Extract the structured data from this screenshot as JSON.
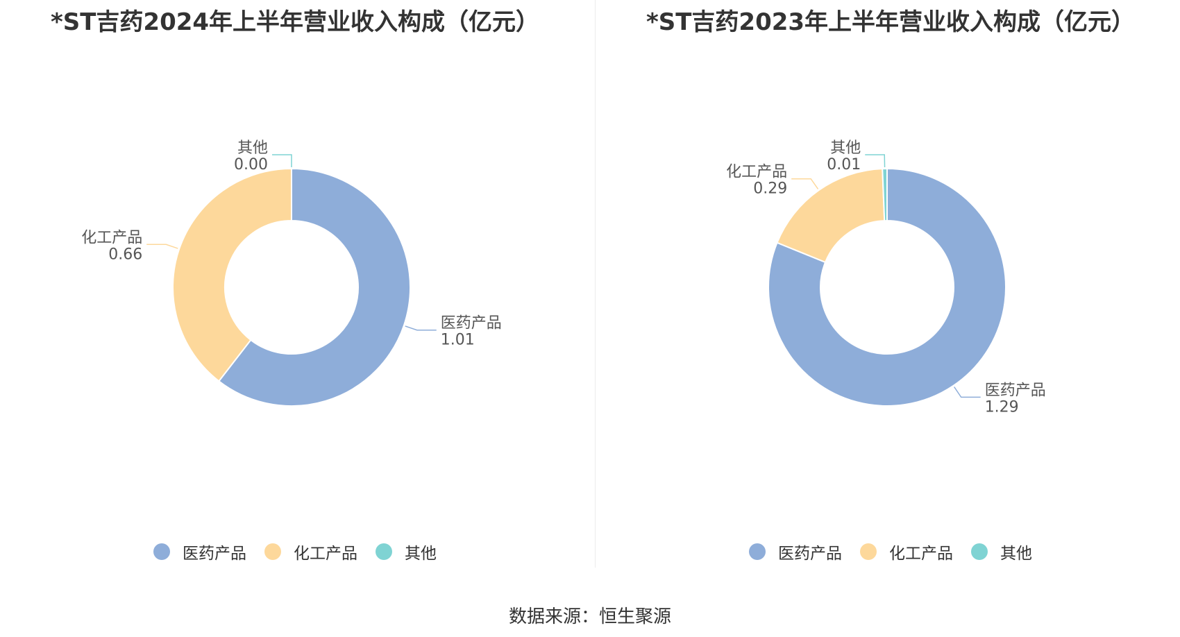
{
  "colors": {
    "医药产品": "#8eadd9",
    "化工产品": "#fdd89b",
    "其他": "#7fd3d3"
  },
  "chart_data": [
    {
      "type": "pie",
      "title": "*ST吉药2024年上半年营业收入构成（亿元）",
      "labels": [
        "医药产品",
        "化工产品",
        "其他"
      ],
      "values": [
        1.01,
        0.66,
        0.0
      ],
      "value_labels": [
        "1.01",
        "0.66",
        "0.00"
      ],
      "donut": true,
      "legend": "bottom"
    },
    {
      "type": "pie",
      "title": "*ST吉药2023年上半年营业收入构成（亿元）",
      "labels": [
        "医药产品",
        "化工产品",
        "其他"
      ],
      "values": [
        1.29,
        0.29,
        0.01
      ],
      "value_labels": [
        "1.29",
        "0.29",
        "0.01"
      ],
      "donut": true,
      "legend": "bottom"
    }
  ],
  "source": "数据来源：恒生聚源"
}
